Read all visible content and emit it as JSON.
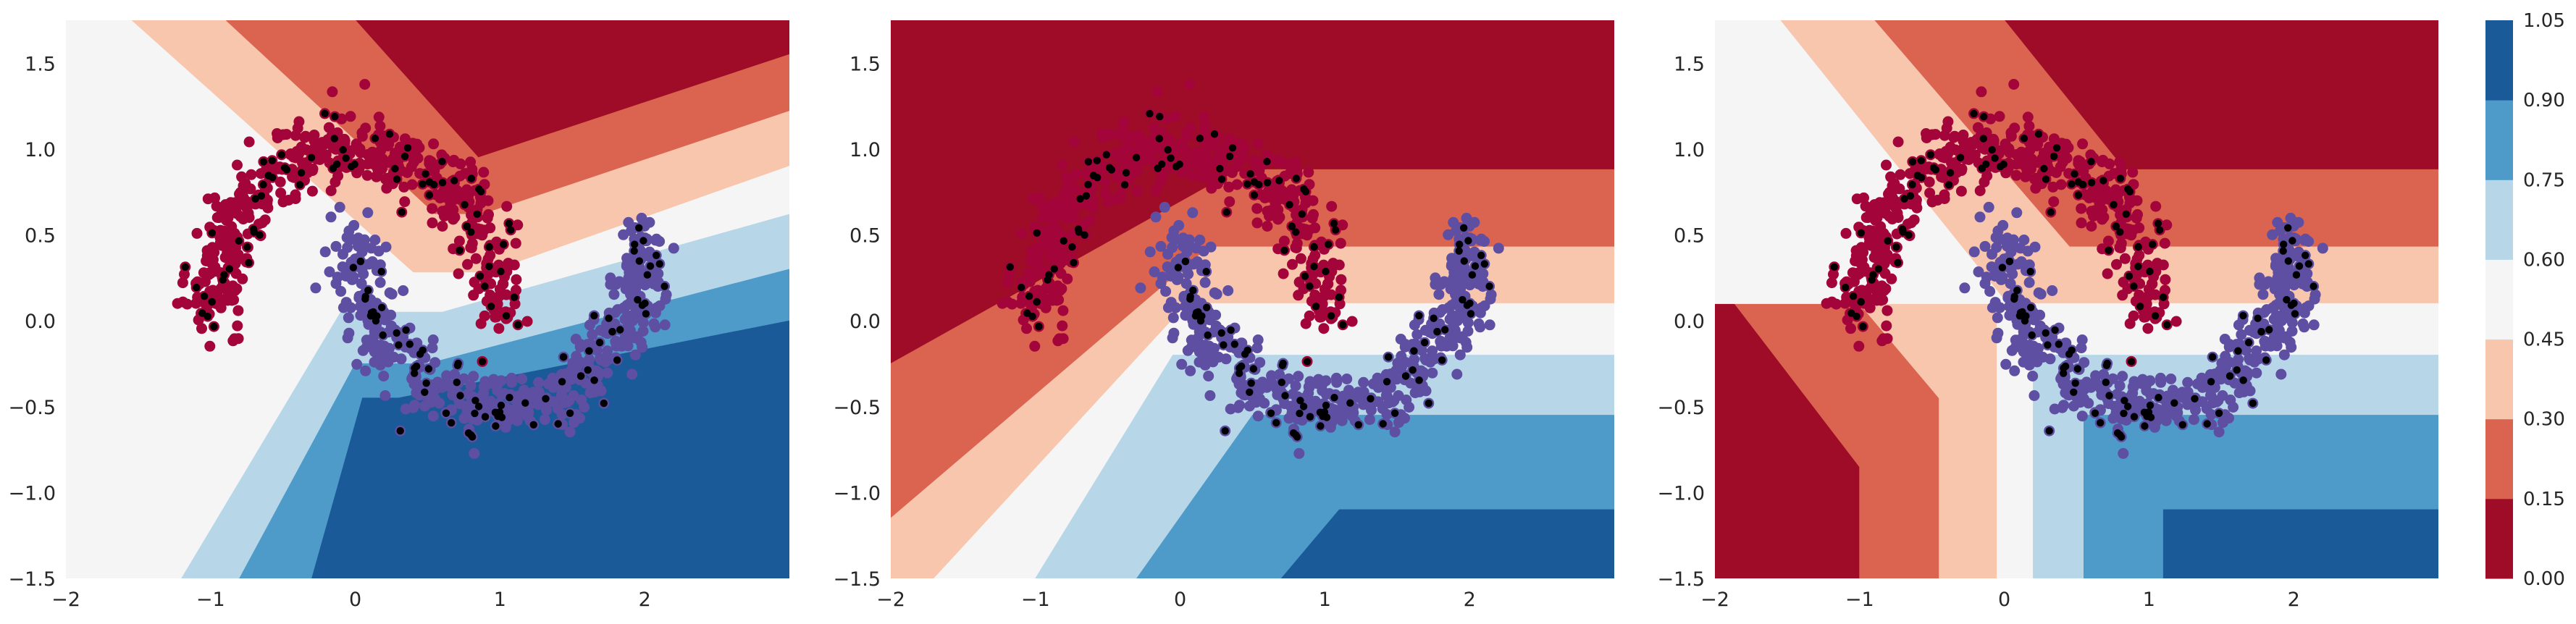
{
  "chart_data": {
    "type": "contour",
    "title": "",
    "xlabel": "",
    "ylabel": "",
    "xlim": [
      -2,
      3
    ],
    "ylim": [
      -1.5,
      1.75
    ],
    "xticks": [
      "−2",
      "−1",
      "0",
      "1",
      "2"
    ],
    "xtick_values": [
      -2,
      -1,
      0,
      1,
      2
    ],
    "yticks": [
      "−1.5",
      "−1.0",
      "−0.5",
      "0.0",
      "0.5",
      "1.0",
      "1.5"
    ],
    "ytick_values": [
      -1.5,
      -1.0,
      -0.5,
      0.0,
      0.5,
      1.0,
      1.5
    ],
    "grid": false,
    "colormap": "RdBu",
    "colorbar": {
      "levels": [
        0.0,
        0.15,
        0.3,
        0.45,
        0.6,
        0.75,
        0.9,
        1.05
      ],
      "tick_labels": [
        "0.00",
        "0.15",
        "0.30",
        "0.45",
        "0.60",
        "0.75",
        "0.90",
        "1.05"
      ],
      "colors": [
        "#9e0c27",
        "#db6451",
        "#f7c6ad",
        "#f5f5f5",
        "#b7d7e9",
        "#4e9bc9",
        "#1b5a98"
      ]
    },
    "colors": {
      "moon_upper": "#a3053a",
      "moon_lower": "#5e4fa2",
      "highlight_points": "#000000"
    },
    "scatter": {
      "description": "two interleaving half-moons (noise 0.1) shown in every panel",
      "upper_moon": {
        "center": [
          0,
          0
        ],
        "radius": 1,
        "angle_range_deg": [
          0,
          180
        ],
        "noise": 0.1
      },
      "lower_moon": {
        "center": [
          1,
          0.5
        ],
        "radius": 1,
        "angle_range_deg": [
          180,
          360
        ],
        "noise": 0.1
      }
    },
    "panels": [
      {
        "name": "panel-1",
        "regions": [
          {
            "level": 0,
            "polygon": [
              [
                0,
                1.75
              ],
              [
                3,
                1.75
              ],
              [
                3,
                1.55
              ],
              [
                0.85,
                0.95
              ]
            ]
          },
          {
            "level": 1,
            "polygon": [
              [
                -0.9,
                1.75
              ],
              [
                0,
                1.75
              ],
              [
                0.85,
                0.95
              ],
              [
                3,
                1.55
              ],
              [
                3,
                1.22
              ],
              [
                0.88,
                0.62
              ],
              [
                0.55,
                0.62
              ]
            ]
          },
          {
            "level": 2,
            "polygon": [
              [
                -1.55,
                1.75
              ],
              [
                -0.9,
                1.75
              ],
              [
                0.55,
                0.62
              ],
              [
                0.88,
                0.62
              ],
              [
                3,
                1.22
              ],
              [
                3,
                0.9
              ],
              [
                0.92,
                0.28
              ],
              [
                0.4,
                0.28
              ]
            ]
          },
          {
            "level": 3,
            "polygon": [
              [
                -2,
                1.75
              ],
              [
                -1.55,
                1.75
              ],
              [
                0.4,
                0.28
              ],
              [
                0.92,
                0.28
              ],
              [
                3,
                0.9
              ],
              [
                3,
                0.62
              ],
              [
                0.6,
                0.05
              ],
              [
                -0.1,
                0.05
              ],
              [
                -1.2,
                -1.5
              ],
              [
                -2,
                -1.5
              ]
            ]
          },
          {
            "level": 4,
            "polygon": [
              [
                -1.2,
                -1.5
              ],
              [
                -0.1,
                0.05
              ],
              [
                0.6,
                0.05
              ],
              [
                3,
                0.62
              ],
              [
                3,
                0.3
              ],
              [
                0.5,
                -0.25
              ],
              [
                0,
                -0.25
              ],
              [
                -0.8,
                -1.5
              ]
            ]
          },
          {
            "level": 5,
            "polygon": [
              [
                -0.8,
                -1.5
              ],
              [
                0,
                -0.25
              ],
              [
                0.5,
                -0.25
              ],
              [
                3,
                0.3
              ],
              [
                3,
                0.0
              ],
              [
                0.3,
                -0.45
              ],
              [
                0.05,
                -0.45
              ],
              [
                -0.3,
                -1.5
              ]
            ]
          },
          {
            "level": 6,
            "polygon": [
              [
                -0.3,
                -1.5
              ],
              [
                0.05,
                -0.45
              ],
              [
                0.3,
                -0.45
              ],
              [
                3,
                0.0
              ],
              [
                3,
                -1.5
              ]
            ]
          }
        ]
      },
      {
        "name": "panel-2",
        "regions": [
          {
            "level": 0,
            "polygon": [
              [
                -2,
                1.75
              ],
              [
                3,
                1.75
              ],
              [
                3,
                0.88
              ],
              [
                0.4,
                0.88
              ],
              [
                -2,
                -0.25
              ]
            ]
          },
          {
            "level": 1,
            "polygon": [
              [
                -2,
                -0.25
              ],
              [
                0.4,
                0.88
              ],
              [
                3,
                0.88
              ],
              [
                3,
                0.43
              ],
              [
                0.2,
                0.43
              ],
              [
                -2,
                -1.15
              ]
            ]
          },
          {
            "level": 2,
            "polygon": [
              [
                -2,
                -1.15
              ],
              [
                0.2,
                0.43
              ],
              [
                3,
                0.43
              ],
              [
                3,
                0.1
              ],
              [
                0.05,
                0.1
              ],
              [
                -1.7,
                -1.5
              ],
              [
                -2,
                -1.5
              ]
            ]
          },
          {
            "level": 3,
            "polygon": [
              [
                -1.7,
                -1.5
              ],
              [
                0.05,
                0.1
              ],
              [
                3,
                0.1
              ],
              [
                3,
                -0.2
              ],
              [
                -0.05,
                -0.2
              ],
              [
                -1.0,
                -1.5
              ]
            ]
          },
          {
            "level": 4,
            "polygon": [
              [
                -1.0,
                -1.5
              ],
              [
                -0.05,
                -0.2
              ],
              [
                3,
                -0.2
              ],
              [
                3,
                -0.55
              ],
              [
                0.5,
                -0.55
              ],
              [
                -0.3,
                -1.5
              ]
            ]
          },
          {
            "level": 5,
            "polygon": [
              [
                -0.3,
                -1.5
              ],
              [
                0.5,
                -0.55
              ],
              [
                3,
                -0.55
              ],
              [
                3,
                -1.1
              ],
              [
                1.1,
                -1.1
              ],
              [
                0.7,
                -1.5
              ]
            ]
          },
          {
            "level": 6,
            "polygon": [
              [
                0.7,
                -1.5
              ],
              [
                1.1,
                -1.1
              ],
              [
                3,
                -1.1
              ],
              [
                3,
                -1.5
              ]
            ]
          }
        ]
      },
      {
        "name": "panel-3",
        "regions": [
          {
            "level": 0,
            "polygon": [
              [
                0,
                1.75
              ],
              [
                3,
                1.75
              ],
              [
                3,
                0.88
              ],
              [
                0.83,
                0.88
              ]
            ]
          },
          {
            "level": 0,
            "polygon": [
              [
                -2,
                0.25
              ],
              [
                -1.0,
                -0.85
              ],
              [
                -1.0,
                -1.5
              ],
              [
                -2,
                -1.5
              ]
            ]
          },
          {
            "level": 1,
            "polygon": [
              [
                -0.9,
                1.75
              ],
              [
                0,
                1.75
              ],
              [
                0.83,
                0.88
              ],
              [
                3,
                0.88
              ],
              [
                3,
                0.43
              ],
              [
                0.45,
                0.43
              ]
            ]
          },
          {
            "level": 1,
            "polygon": [
              [
                -2,
                1.1
              ],
              [
                -2,
                0.25
              ],
              [
                -1.0,
                -0.85
              ],
              [
                -1.0,
                -1.5
              ],
              [
                -0.45,
                -1.5
              ],
              [
                -0.45,
                -0.45
              ]
            ]
          },
          {
            "level": 2,
            "polygon": [
              [
                -1.55,
                1.75
              ],
              [
                -0.9,
                1.75
              ],
              [
                0.45,
                0.43
              ],
              [
                3,
                0.43
              ],
              [
                3,
                0.1
              ],
              [
                0.02,
                0.1
              ]
            ]
          },
          {
            "level": 2,
            "polygon": [
              [
                -2,
                1.45
              ],
              [
                -2,
                1.1
              ],
              [
                -0.45,
                -0.45
              ],
              [
                -0.45,
                -1.5
              ],
              [
                -0.05,
                -1.5
              ],
              [
                -0.05,
                0.1
              ]
            ]
          },
          {
            "level": 3,
            "polygon": [
              [
                -2,
                1.75
              ],
              [
                -1.55,
                1.75
              ],
              [
                0.02,
                0.1
              ],
              [
                -0.05,
                0.1
              ],
              [
                -0.05,
                -1.5
              ],
              [
                0.2,
                -1.5
              ],
              [
                0.2,
                -0.2
              ],
              [
                3,
                -0.2
              ],
              [
                3,
                0.1
              ],
              [
                -2,
                0.1
              ],
              [
                -2,
                1.45
              ]
            ]
          },
          {
            "level": 4,
            "polygon": [
              [
                0.2,
                -1.5
              ],
              [
                0.2,
                -0.2
              ],
              [
                3,
                -0.2
              ],
              [
                3,
                -0.55
              ],
              [
                0.55,
                -0.55
              ],
              [
                0.55,
                -1.5
              ]
            ]
          },
          {
            "level": 5,
            "polygon": [
              [
                0.55,
                -1.5
              ],
              [
                0.55,
                -0.55
              ],
              [
                3,
                -0.55
              ],
              [
                3,
                -1.1
              ],
              [
                1.1,
                -1.1
              ],
              [
                1.1,
                -1.5
              ]
            ]
          },
          {
            "level": 6,
            "polygon": [
              [
                1.1,
                -1.5
              ],
              [
                1.1,
                -1.1
              ],
              [
                3,
                -1.1
              ],
              [
                3,
                -1.5
              ]
            ]
          }
        ]
      }
    ]
  }
}
